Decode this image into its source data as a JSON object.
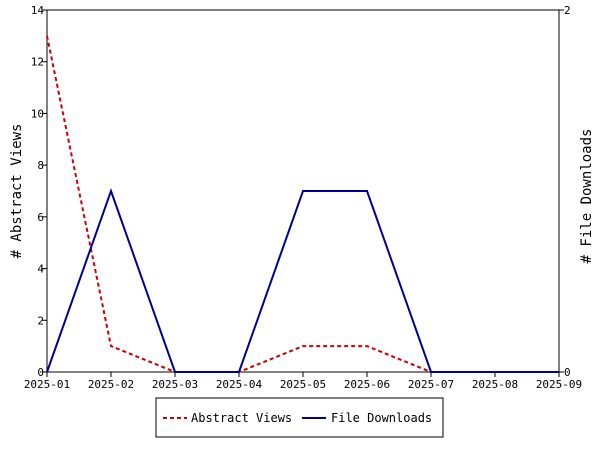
{
  "chart_data": {
    "type": "line",
    "x": [
      "2025-01",
      "2025-02",
      "2025-03",
      "2025-04",
      "2025-05",
      "2025-06",
      "2025-07",
      "2025-08",
      "2025-09"
    ],
    "y_left": {
      "label": "# Abstract Views",
      "range": [
        0,
        14
      ],
      "ticks": [
        "0",
        "2",
        "4",
        "6",
        "8",
        "10",
        "12",
        "14"
      ]
    },
    "y_right": {
      "label": "# File Downloads",
      "range": [
        0,
        2
      ],
      "ticks": [
        "0",
        "2"
      ]
    },
    "series": [
      {
        "name": "Abstract Views",
        "axis": "left",
        "color": "#cc0000",
        "dash": "dashed",
        "values": [
          13,
          1,
          0,
          0,
          1,
          1,
          0,
          0,
          0
        ]
      },
      {
        "name": "File Downloads",
        "axis": "left",
        "color": "#000099",
        "dash": "solid",
        "values": [
          0,
          7,
          0,
          0,
          7,
          7,
          0,
          0,
          0
        ]
      }
    ],
    "grid": false,
    "legend_position": "bottom-center"
  }
}
